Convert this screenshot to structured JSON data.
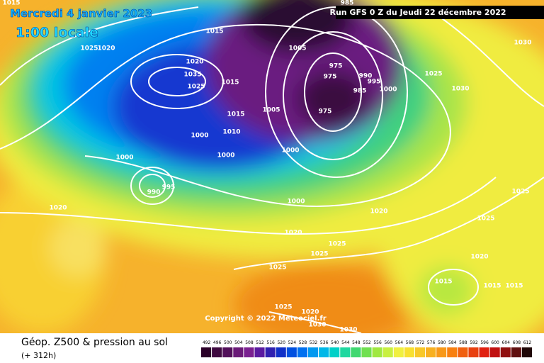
{
  "header": {
    "date": "Mercredi 4 janvier 2023",
    "time": "1:00 locale",
    "run": "Run GFS 0 Z du Jeudi 22 décembre 2022"
  },
  "isobar_labels": [
    1015,
    985,
    1015,
    1025,
    1020,
    1020,
    1035,
    1025,
    1015,
    1005,
    975,
    975,
    990,
    995,
    1000,
    985,
    975,
    1005,
    1015,
    1010,
    1000,
    1000,
    1000,
    1000,
    995,
    990,
    1020,
    1000,
    1020,
    1020,
    1025,
    1025,
    1025,
    1025,
    1025,
    1025,
    1030,
    1030,
    1020,
    1015,
    1015,
    1015,
    1025,
    1020,
    1030,
    1030
  ],
  "copyright": "Copyright © 2022 Meteociel.fr",
  "footer": {
    "title": "Géop. Z500 & pression au sol",
    "lead": "(+ 312h)"
  },
  "legend": [
    {
      "value": 492,
      "color": "#2a0028"
    },
    {
      "value": 496,
      "color": "#3f0a40"
    },
    {
      "value": 500,
      "color": "#52105a"
    },
    {
      "value": 504,
      "color": "#6a1a78"
    },
    {
      "value": 508,
      "color": "#7a2090"
    },
    {
      "value": 512,
      "color": "#5a1aa0"
    },
    {
      "value": 516,
      "color": "#3020b0"
    },
    {
      "value": 520,
      "color": "#1030c8"
    },
    {
      "value": 524,
      "color": "#0050e0"
    },
    {
      "value": 528,
      "color": "#0070f0"
    },
    {
      "value": 532,
      "color": "#0098f0"
    },
    {
      "value": 536,
      "color": "#00b8e8"
    },
    {
      "value": 540,
      "color": "#00d0c8"
    },
    {
      "value": 544,
      "color": "#20d8a0"
    },
    {
      "value": 548,
      "color": "#40d870"
    },
    {
      "value": 552,
      "color": "#70e050"
    },
    {
      "value": 556,
      "color": "#a0e840"
    },
    {
      "value": 560,
      "color": "#c8f040"
    },
    {
      "value": 564,
      "color": "#f0f040"
    },
    {
      "value": 568,
      "color": "#f8e030"
    },
    {
      "value": 572,
      "color": "#f8c828"
    },
    {
      "value": 576,
      "color": "#f8b020"
    },
    {
      "value": 580,
      "color": "#f89818"
    },
    {
      "value": 584,
      "color": "#f88010"
    },
    {
      "value": 588,
      "color": "#f06010"
    },
    {
      "value": 592,
      "color": "#e84010"
    },
    {
      "value": 596,
      "color": "#e02010"
    },
    {
      "value": 600,
      "color": "#c01010"
    },
    {
      "value": 604,
      "color": "#901010"
    },
    {
      "value": 608,
      "color": "#601010"
    },
    {
      "value": 612,
      "color": "#200808"
    }
  ]
}
